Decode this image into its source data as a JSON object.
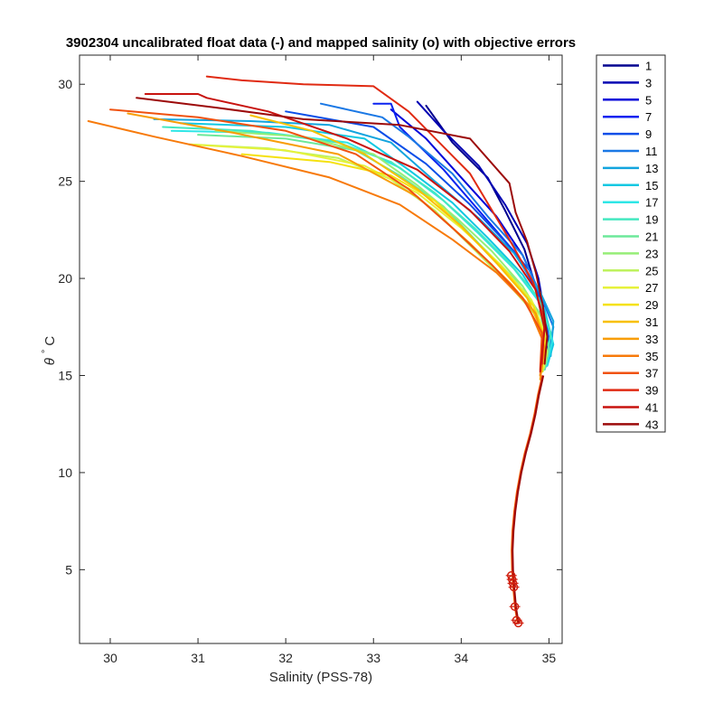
{
  "chart_data": {
    "type": "line",
    "title": "3902304 uncalibrated float data (-) and mapped salinity (o) with objective errors",
    "xlabel": "Salinity (PSS-78)",
    "ylabel_symbol": "θ",
    "ylabel_unit": "C",
    "xlim": [
      29.65,
      35.15
    ],
    "ylim": [
      1.2,
      31.5
    ],
    "xticks": [
      "30",
      "31",
      "32",
      "33",
      "34",
      "35"
    ],
    "yticks": [
      "5",
      "10",
      "15",
      "20",
      "25",
      "30"
    ],
    "xtick_values": [
      30,
      31,
      32,
      33,
      34,
      35
    ],
    "ytick_values": [
      5,
      10,
      15,
      20,
      25,
      30
    ],
    "grid": false,
    "legend_position": "outside-right",
    "legend": [
      "1",
      "3",
      "5",
      "7",
      "9",
      "11",
      "13",
      "15",
      "17",
      "19",
      "21",
      "23",
      "25",
      "27",
      "29",
      "31",
      "33",
      "35",
      "37",
      "39",
      "41",
      "43"
    ],
    "colors": [
      "#00008f",
      "#0000b3",
      "#0000d9",
      "#0a22f0",
      "#0a4ee8",
      "#1a78e5",
      "#12a4de",
      "#11c8e2",
      "#2ee6e6",
      "#44e8c0",
      "#6ce89a",
      "#96ee78",
      "#bff25e",
      "#e6f23a",
      "#f5e10f",
      "#f8c000",
      "#f89d06",
      "#f77a0a",
      "#f0520f",
      "#e02a12",
      "#c8130f",
      "#9c0a0a"
    ],
    "series": [
      {
        "name": "1",
        "color": "#00008f",
        "points": [
          [
            33.6,
            28.9
          ],
          [
            33.9,
            27.0
          ],
          [
            34.3,
            25.2
          ],
          [
            34.5,
            23.5
          ],
          [
            34.72,
            21.5
          ],
          [
            34.82,
            20.0
          ],
          [
            34.92,
            18.5
          ],
          [
            34.98,
            16.8
          ],
          [
            34.92,
            15.6
          ]
        ]
      },
      {
        "name": "3",
        "color": "#0000b3",
        "points": [
          [
            33.5,
            29.1
          ],
          [
            33.8,
            27.6
          ],
          [
            34.2,
            25.8
          ],
          [
            34.5,
            23.8
          ],
          [
            34.75,
            21.8
          ],
          [
            34.88,
            20.0
          ],
          [
            34.95,
            18.2
          ],
          [
            35.0,
            16.5
          ],
          [
            34.94,
            15.4
          ]
        ]
      },
      {
        "name": "5",
        "color": "#0000d9",
        "points": [
          [
            33.2,
            28.7
          ],
          [
            33.6,
            27.2
          ],
          [
            34.0,
            25.2
          ],
          [
            34.4,
            23.2
          ],
          [
            34.7,
            21.2
          ],
          [
            34.86,
            19.6
          ],
          [
            34.96,
            17.8
          ],
          [
            34.98,
            16.2
          ],
          [
            34.92,
            15.3
          ]
        ]
      },
      {
        "name": "7",
        "color": "#0a22f0",
        "points": [
          [
            33.0,
            29.0
          ],
          [
            33.2,
            29.0
          ],
          [
            33.3,
            27.8
          ],
          [
            33.8,
            25.6
          ],
          [
            34.2,
            23.5
          ],
          [
            34.6,
            21.4
          ],
          [
            34.85,
            19.5
          ],
          [
            34.98,
            17.6
          ],
          [
            34.95,
            15.8
          ]
        ]
      },
      {
        "name": "9",
        "color": "#0a4ee8",
        "points": [
          [
            32.0,
            28.6
          ],
          [
            33.0,
            27.8
          ],
          [
            33.6,
            25.9
          ],
          [
            34.1,
            23.8
          ],
          [
            34.5,
            21.9
          ],
          [
            34.8,
            20.3
          ],
          [
            34.96,
            18.0
          ],
          [
            35.02,
            16.3
          ],
          [
            34.95,
            15.3
          ]
        ]
      },
      {
        "name": "11",
        "color": "#1a78e5",
        "points": [
          [
            32.4,
            29.0
          ],
          [
            33.1,
            28.3
          ],
          [
            33.4,
            27.3
          ],
          [
            33.9,
            25.4
          ],
          [
            34.3,
            23.2
          ],
          [
            34.7,
            21.2
          ],
          [
            34.9,
            19.2
          ],
          [
            35.05,
            17.5
          ],
          [
            34.98,
            15.8
          ]
        ]
      },
      {
        "name": "13",
        "color": "#12a4de",
        "points": [
          [
            30.5,
            28.2
          ],
          [
            31.6,
            28.1
          ],
          [
            32.5,
            27.9
          ],
          [
            33.2,
            27.0
          ],
          [
            33.7,
            25.0
          ],
          [
            34.2,
            23.1
          ],
          [
            34.6,
            21.3
          ],
          [
            34.9,
            19.3
          ],
          [
            35.05,
            17.8
          ],
          [
            35.02,
            16.0
          ]
        ]
      },
      {
        "name": "15",
        "color": "#11c8e2",
        "points": [
          [
            30.8,
            28.0
          ],
          [
            32.0,
            27.8
          ],
          [
            32.9,
            27.2
          ],
          [
            33.4,
            25.6
          ],
          [
            33.9,
            23.9
          ],
          [
            34.3,
            22.1
          ],
          [
            34.7,
            20.2
          ],
          [
            34.95,
            18.4
          ],
          [
            35.05,
            16.6
          ],
          [
            34.98,
            15.5
          ]
        ]
      },
      {
        "name": "17",
        "color": "#2ee6e6",
        "points": [
          [
            30.7,
            27.6
          ],
          [
            31.8,
            27.5
          ],
          [
            32.7,
            27.0
          ],
          [
            33.3,
            25.7
          ],
          [
            33.8,
            24.0
          ],
          [
            34.2,
            22.3
          ],
          [
            34.6,
            20.5
          ],
          [
            34.92,
            18.6
          ],
          [
            35.04,
            16.8
          ],
          [
            34.97,
            15.5
          ]
        ]
      },
      {
        "name": "19",
        "color": "#44e8c0",
        "points": [
          [
            30.6,
            27.8
          ],
          [
            31.6,
            27.6
          ],
          [
            32.6,
            27.0
          ],
          [
            33.2,
            26.0
          ],
          [
            33.7,
            24.4
          ],
          [
            34.15,
            22.6
          ],
          [
            34.55,
            20.8
          ],
          [
            34.88,
            19.0
          ],
          [
            35.02,
            17.2
          ],
          [
            34.97,
            15.6
          ]
        ]
      },
      {
        "name": "21",
        "color": "#6ce89a",
        "points": [
          [
            31.0,
            27.4
          ],
          [
            32.0,
            27.2
          ],
          [
            32.8,
            26.6
          ],
          [
            33.3,
            25.3
          ],
          [
            33.8,
            23.7
          ],
          [
            34.2,
            21.8
          ],
          [
            34.6,
            20.0
          ],
          [
            34.9,
            18.2
          ],
          [
            35.0,
            16.4
          ],
          [
            34.95,
            15.3
          ]
        ]
      },
      {
        "name": "23",
        "color": "#96ee78",
        "points": [
          [
            31.2,
            27.6
          ],
          [
            32.2,
            27.3
          ],
          [
            33.0,
            26.4
          ],
          [
            33.5,
            24.8
          ],
          [
            33.95,
            23.1
          ],
          [
            34.35,
            21.4
          ],
          [
            34.7,
            19.6
          ],
          [
            34.94,
            17.8
          ],
          [
            34.98,
            16.0
          ]
        ]
      },
      {
        "name": "25",
        "color": "#bff25e",
        "points": [
          [
            30.9,
            26.9
          ],
          [
            31.8,
            26.7
          ],
          [
            32.6,
            26.2
          ],
          [
            33.2,
            25.1
          ],
          [
            33.7,
            23.5
          ],
          [
            34.1,
            21.7
          ],
          [
            34.5,
            19.9
          ],
          [
            34.85,
            18.1
          ],
          [
            34.98,
            16.2
          ],
          [
            34.93,
            15.2
          ]
        ]
      },
      {
        "name": "27",
        "color": "#e6f23a",
        "points": [
          [
            30.9,
            26.9
          ],
          [
            32.0,
            26.6
          ],
          [
            32.9,
            25.8
          ],
          [
            33.5,
            24.4
          ],
          [
            34.0,
            22.6
          ],
          [
            34.45,
            20.7
          ],
          [
            34.8,
            18.9
          ],
          [
            34.96,
            17.1
          ],
          [
            34.94,
            15.4
          ]
        ]
      },
      {
        "name": "29",
        "color": "#f5e10f",
        "points": [
          [
            31.5,
            26.4
          ],
          [
            32.5,
            26.0
          ],
          [
            33.2,
            25.3
          ],
          [
            33.7,
            24.0
          ],
          [
            34.1,
            22.2
          ],
          [
            34.5,
            20.4
          ],
          [
            34.82,
            18.6
          ],
          [
            34.96,
            16.8
          ],
          [
            34.9,
            15.0
          ]
        ]
      },
      {
        "name": "31",
        "color": "#f8c000",
        "points": [
          [
            31.6,
            28.4
          ],
          [
            32.3,
            27.6
          ],
          [
            32.9,
            26.4
          ],
          [
            33.5,
            24.6
          ],
          [
            34.0,
            22.7
          ],
          [
            34.4,
            20.8
          ],
          [
            34.75,
            19.0
          ],
          [
            34.93,
            17.2
          ],
          [
            34.92,
            15.2
          ]
        ]
      },
      {
        "name": "33",
        "color": "#f89d06",
        "points": [
          [
            30.2,
            28.5
          ],
          [
            31.4,
            27.5
          ],
          [
            32.6,
            26.4
          ],
          [
            33.5,
            24.2
          ],
          [
            34.1,
            21.8
          ],
          [
            34.55,
            19.8
          ],
          [
            34.85,
            18.2
          ],
          [
            34.95,
            16.4
          ],
          [
            34.9,
            14.8
          ]
        ]
      },
      {
        "name": "35",
        "color": "#f77a0a",
        "points": [
          [
            29.75,
            28.1
          ],
          [
            30.5,
            27.3
          ],
          [
            31.5,
            26.3
          ],
          [
            32.5,
            25.2
          ],
          [
            33.3,
            23.8
          ],
          [
            33.9,
            22.0
          ],
          [
            34.4,
            20.3
          ],
          [
            34.75,
            18.7
          ],
          [
            34.93,
            16.8
          ],
          [
            34.9,
            15.0
          ]
        ]
      },
      {
        "name": "37",
        "color": "#f0520f",
        "points": [
          [
            30.0,
            28.7
          ],
          [
            31.0,
            28.3
          ],
          [
            32.0,
            27.6
          ],
          [
            32.8,
            26.4
          ],
          [
            33.4,
            24.6
          ],
          [
            33.9,
            22.6
          ],
          [
            34.35,
            20.7
          ],
          [
            34.7,
            19.0
          ],
          [
            34.92,
            17.2
          ],
          [
            34.9,
            15.3
          ]
        ]
      },
      {
        "name": "39",
        "color": "#e02a12",
        "points": [
          [
            31.1,
            30.4
          ],
          [
            31.5,
            30.2
          ],
          [
            32.2,
            30.0
          ],
          [
            33.0,
            29.9
          ],
          [
            33.4,
            28.6
          ],
          [
            34.1,
            25.4
          ],
          [
            34.55,
            22.0
          ],
          [
            34.82,
            19.8
          ],
          [
            34.95,
            17.8
          ],
          [
            34.92,
            15.6
          ]
        ]
      },
      {
        "name": "41",
        "color": "#c8130f",
        "points": [
          [
            30.4,
            29.5
          ],
          [
            31.0,
            29.5
          ],
          [
            31.1,
            29.3
          ],
          [
            31.8,
            28.6
          ],
          [
            32.7,
            27.2
          ],
          [
            33.5,
            25.6
          ],
          [
            34.1,
            23.5
          ],
          [
            34.55,
            21.4
          ],
          [
            34.85,
            19.4
          ],
          [
            34.95,
            17.4
          ],
          [
            34.9,
            15.2
          ]
        ]
      },
      {
        "name": "43",
        "color": "#9c0a0a",
        "points": [
          [
            30.3,
            29.3
          ],
          [
            31.2,
            28.8
          ],
          [
            32.2,
            28.2
          ],
          [
            33.3,
            27.9
          ],
          [
            34.1,
            27.2
          ],
          [
            34.55,
            24.9
          ],
          [
            34.62,
            23.4
          ],
          [
            34.75,
            21.9
          ],
          [
            34.85,
            20.3
          ],
          [
            34.93,
            18.6
          ],
          [
            34.98,
            17.0
          ],
          [
            34.95,
            15.6
          ]
        ]
      }
    ],
    "deep_profile": [
      [
        34.93,
        15.0
      ],
      [
        34.88,
        14.0
      ],
      [
        34.84,
        13.0
      ],
      [
        34.79,
        12.0
      ],
      [
        34.73,
        11.0
      ],
      [
        34.68,
        10.0
      ],
      [
        34.64,
        9.0
      ],
      [
        34.61,
        8.0
      ],
      [
        34.59,
        7.0
      ],
      [
        34.58,
        6.0
      ],
      [
        34.585,
        5.0
      ],
      [
        34.6,
        4.0
      ],
      [
        34.62,
        3.0
      ],
      [
        34.65,
        2.2
      ]
    ],
    "mapped_salinity_markers": [
      [
        34.57,
        4.7
      ],
      [
        34.58,
        4.5
      ],
      [
        34.59,
        4.3
      ],
      [
        34.6,
        4.1
      ],
      [
        34.61,
        3.1
      ],
      [
        34.63,
        2.4
      ],
      [
        34.65,
        2.25
      ]
    ]
  }
}
